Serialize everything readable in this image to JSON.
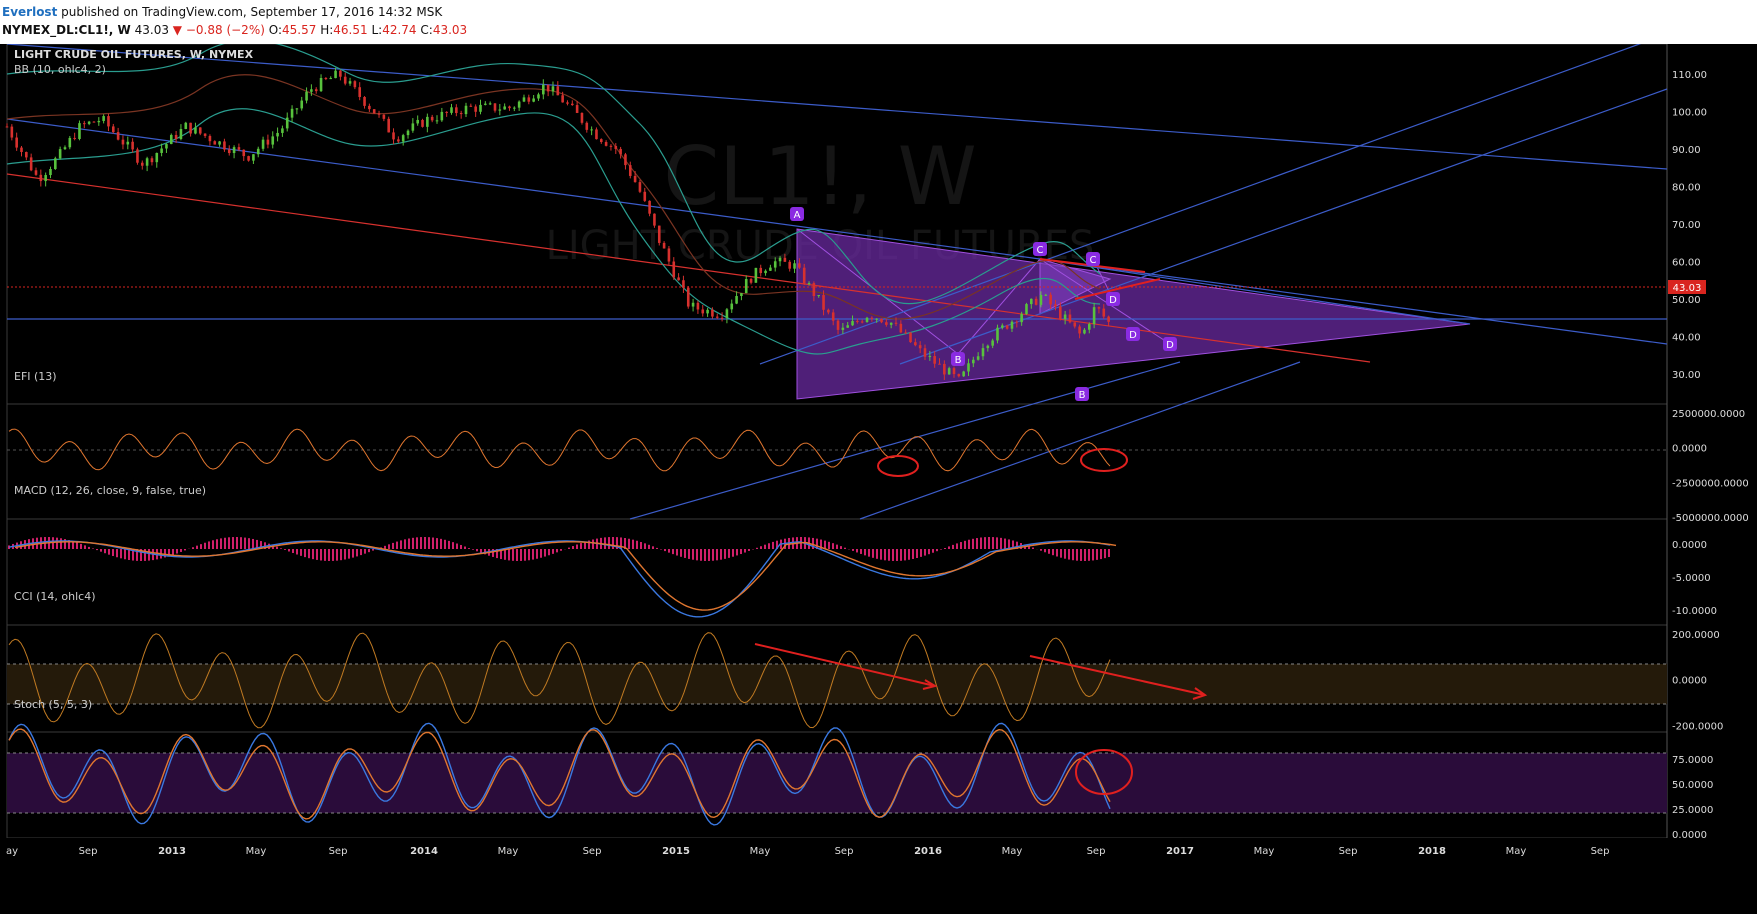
{
  "header": {
    "author": "Everlost",
    "published": "published on TradingView.com, September 17, 2016 14:32 MSK",
    "symbol": "NYMEX_DL:CL1!, W",
    "last": "43.03",
    "change": "−0.88 (−2%)",
    "o_label": "O:",
    "o": "45.57",
    "h_label": "H:",
    "h": "46.51",
    "l_label": "L:",
    "l": "42.74",
    "c_label": "C:",
    "c": "43.03"
  },
  "watermark": {
    "big": "CL1!, W",
    "small": "LIGHT CRUDE OIL FUTURES"
  },
  "colors": {
    "bg": "#000000",
    "up": "#58c23d",
    "down": "#d7312e",
    "bb": "#2a9d8f",
    "trend": "#3c5cc9",
    "pattern": "#9b3fd6",
    "orange": "#e0762f",
    "red": "#e0201f",
    "stoch_k": "#3a78e0",
    "stoch_d": "#e0762f",
    "price_badge": "#d9251f"
  },
  "x_ticks": [
    "ay",
    "Sep",
    "2013",
    "May",
    "Sep",
    "2014",
    "May",
    "Sep",
    "2015",
    "May",
    "Sep",
    "2016",
    "May",
    "Sep",
    "2017",
    "May",
    "Sep",
    "2018",
    "May",
    "Sep"
  ],
  "price_badge": "43.03",
  "pattern_labels": [
    "A",
    "B",
    "C",
    "D",
    "B",
    "C",
    "D",
    "D"
  ],
  "chart_data": [
    {
      "type": "candlestick",
      "title": "LIGHT CRUDE OIL FUTURES, W, NYMEX",
      "indicator": "BB (10, ohlc4, 2)",
      "y_ticks": [
        "110.00",
        "100.00",
        "90.00",
        "80.00",
        "70.00",
        "60.00",
        "50.00",
        "40.00",
        "30.00"
      ],
      "ylim": [
        22,
        118
      ],
      "last_price": 43.03,
      "x_range": [
        "2012-05",
        "2018-12"
      ],
      "close_path": [
        [
          "2012-05-01",
          96
        ],
        [
          "2012-06-15",
          82
        ],
        [
          "2012-07-15",
          88
        ],
        [
          "2012-08-15",
          96
        ],
        [
          "2012-09-15",
          98
        ],
        [
          "2012-11-15",
          86
        ],
        [
          "2013-01-15",
          96
        ],
        [
          "2013-03-01",
          92
        ],
        [
          "2013-04-15",
          88
        ],
        [
          "2013-06-01",
          95
        ],
        [
          "2013-07-15",
          106
        ],
        [
          "2013-08-25",
          110
        ],
        [
          "2013-10-15",
          100
        ],
        [
          "2013-11-15",
          93
        ],
        [
          "2014-01-01",
          98
        ],
        [
          "2014-03-01",
          101
        ],
        [
          "2014-05-01",
          101
        ],
        [
          "2014-06-20",
          107
        ],
        [
          "2014-07-15",
          103
        ],
        [
          "2014-09-01",
          94
        ],
        [
          "2014-10-01",
          90
        ],
        [
          "2014-11-01",
          80
        ],
        [
          "2014-12-01",
          66
        ],
        [
          "2015-01-15",
          48
        ],
        [
          "2015-03-01",
          46
        ],
        [
          "2015-04-15",
          56
        ],
        [
          "2015-05-15",
          60
        ],
        [
          "2015-06-15",
          59
        ],
        [
          "2015-07-20",
          50
        ],
        [
          "2015-08-20",
          41
        ],
        [
          "2015-10-01",
          46
        ],
        [
          "2015-11-01",
          44
        ],
        [
          "2015-12-15",
          36
        ],
        [
          "2016-02-10",
          28
        ],
        [
          "2016-03-15",
          38
        ],
        [
          "2016-05-01",
          45
        ],
        [
          "2016-06-08",
          51
        ],
        [
          "2016-07-15",
          44
        ],
        [
          "2016-08-05",
          40
        ],
        [
          "2016-08-25",
          48
        ],
        [
          "2016-09-16",
          43.03
        ]
      ]
    },
    {
      "type": "line",
      "title": "EFI (13)",
      "y_ticks": [
        "2500000.0000",
        "0.0000",
        "-2500000.0000",
        "-5000000.0000"
      ],
      "ylim": [
        -5000000,
        3000000
      ]
    },
    {
      "type": "line",
      "title": "MACD (12, 26, close, 9, false, true)",
      "y_ticks": [
        "0.0000",
        "-5.0000",
        "-10.0000"
      ],
      "ylim": [
        -12,
        3.5
      ]
    },
    {
      "type": "line",
      "title": "CCI (14, ohlc4)",
      "y_ticks": [
        "200.0000",
        "0.0000",
        "-200.0000"
      ],
      "ylim": [
        -220,
        230
      ],
      "bands": [
        100,
        -100
      ]
    },
    {
      "type": "line",
      "title": "Stoch (5, 5, 3)",
      "y_ticks": [
        "75.0000",
        "50.0000",
        "25.0000",
        "0.0000"
      ],
      "ylim": [
        0,
        100
      ],
      "bands": [
        80,
        20
      ]
    }
  ]
}
